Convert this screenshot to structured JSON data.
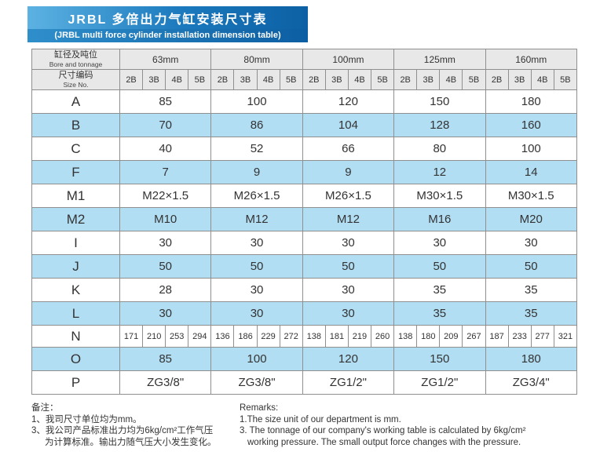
{
  "banner": {
    "title_cn": "JRBL 多倍出力气缸安装尺寸表",
    "title_en": "(JRBL multi force cylinder installation dimension table)"
  },
  "table": {
    "header": {
      "col1_line1": "缸径及吨位",
      "col1_line2": "Bore and tonnage",
      "col2_line1": "尺寸编码",
      "col2_line2": "Size No.",
      "bores": [
        "63mm",
        "80mm",
        "100mm",
        "125mm",
        "160mm"
      ],
      "size_codes": [
        "2B",
        "3B",
        "4B",
        "5B"
      ]
    },
    "rows": [
      {
        "label": "A",
        "type": "span",
        "shaded": false,
        "values": [
          "85",
          "100",
          "120",
          "150",
          "180"
        ]
      },
      {
        "label": "B",
        "type": "span",
        "shaded": true,
        "values": [
          "70",
          "86",
          "104",
          "128",
          "160"
        ]
      },
      {
        "label": "C",
        "type": "span",
        "shaded": false,
        "values": [
          "40",
          "52",
          "66",
          "80",
          "100"
        ]
      },
      {
        "label": "F",
        "type": "span",
        "shaded": true,
        "values": [
          "7",
          "9",
          "9",
          "12",
          "14"
        ]
      },
      {
        "label": "M1",
        "type": "span",
        "shaded": false,
        "values": [
          "M22×1.5",
          "M26×1.5",
          "M26×1.5",
          "M30×1.5",
          "M30×1.5"
        ]
      },
      {
        "label": "M2",
        "type": "span",
        "shaded": true,
        "values": [
          "M10",
          "M12",
          "M12",
          "M16",
          "M20"
        ]
      },
      {
        "label": "I",
        "type": "span",
        "shaded": false,
        "values": [
          "30",
          "30",
          "30",
          "30",
          "30"
        ]
      },
      {
        "label": "J",
        "type": "span",
        "shaded": true,
        "values": [
          "50",
          "50",
          "50",
          "50",
          "50"
        ]
      },
      {
        "label": "K",
        "type": "span",
        "shaded": false,
        "values": [
          "28",
          "30",
          "30",
          "35",
          "35"
        ]
      },
      {
        "label": "L",
        "type": "span",
        "shaded": true,
        "values": [
          "30",
          "30",
          "30",
          "35",
          "35"
        ]
      },
      {
        "label": "N",
        "type": "cells",
        "shaded": false,
        "values": [
          "171",
          "210",
          "253",
          "294",
          "136",
          "186",
          "229",
          "272",
          "138",
          "181",
          "219",
          "260",
          "138",
          "180",
          "209",
          "267",
          "187",
          "233",
          "277",
          "321"
        ]
      },
      {
        "label": "O",
        "type": "span",
        "shaded": true,
        "values": [
          "85",
          "100",
          "120",
          "150",
          "180"
        ]
      },
      {
        "label": "P",
        "type": "span",
        "shaded": false,
        "values": [
          "ZG3/8\"",
          "ZG3/8\"",
          "ZG1/2\"",
          "ZG1/2\"",
          "ZG3/4\""
        ]
      }
    ]
  },
  "remarks_cn": {
    "title": "备注：",
    "lines": [
      "1、我司尺寸单位均为mm。",
      "3、我公司产品标准出力均为6kg/cm²工作气压",
      "为计算标准。输出力随气压大小发生变化。"
    ]
  },
  "remarks_en": {
    "title": "Remarks:",
    "lines": [
      "1.The size unit of our department is mm.",
      "3. The tonnage of our company's working table is calculated by 6kg/cm²",
      "working pressure. The small output force changes with the pressure."
    ]
  },
  "colors": {
    "banner_blue_light": "#5cb2e2",
    "banner_blue_dark": "#0d60a4",
    "row_blue": "#b2def4",
    "header_gray": "#e8e8e8",
    "border_gray": "#8f8f8f"
  }
}
